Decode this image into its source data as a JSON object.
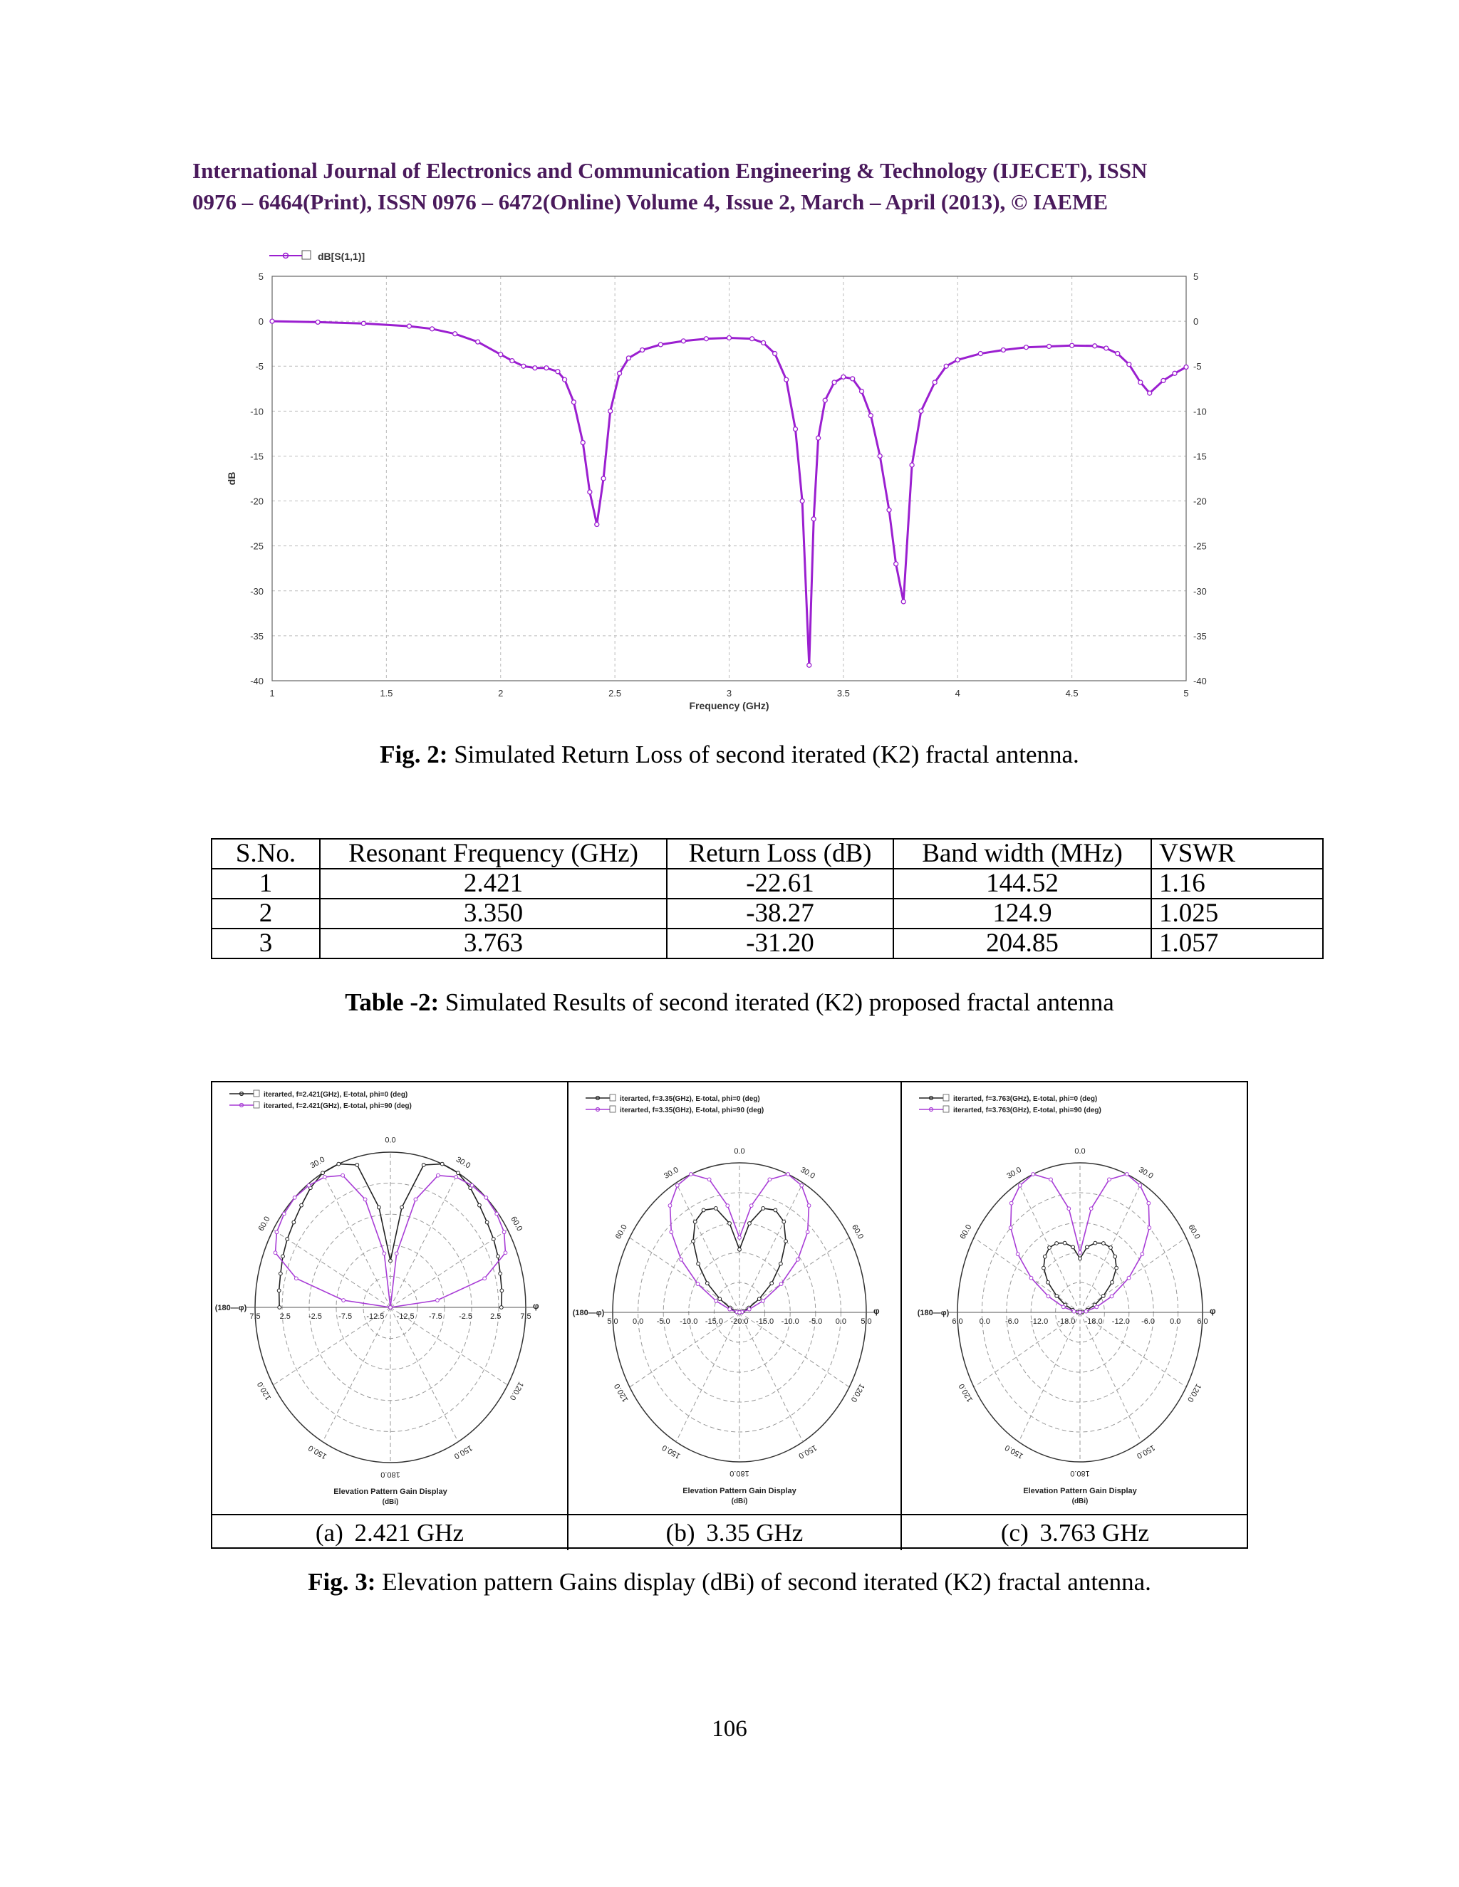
{
  "header": {
    "line1": "International Journal of Electronics and Communication Engineering & Technology (IJECET), ISSN",
    "line2": "0976 – 6464(Print), ISSN 0976 – 6472(Online) Volume 4, Issue 2, March – April (2013), © IAEME"
  },
  "fig2": {
    "caption_label": "Fig. 2:",
    "caption_text": " Simulated Return Loss of second iterated (K2) fractal antenna."
  },
  "chart_data": {
    "type": "line",
    "legend": "dB[S(1,1)]",
    "legend_position": "top-left",
    "xlabel": "Frequency (GHz)",
    "ylabel": "dB",
    "xlim": [
      1,
      5
    ],
    "ylim": [
      -40,
      5
    ],
    "x_ticks": [
      "1",
      "1.5",
      "2",
      "2.5",
      "3",
      "3.5",
      "4",
      "4.5",
      "5"
    ],
    "y_ticks": [
      "5",
      "0",
      "-5",
      "-10",
      "-15",
      "-20",
      "-25",
      "-30",
      "-35",
      "-40"
    ],
    "grid": true,
    "color": "#9b1fd0",
    "series": [
      {
        "name": "dB[S(1,1)]",
        "x": [
          1.0,
          1.2,
          1.4,
          1.6,
          1.7,
          1.8,
          1.9,
          2.0,
          2.05,
          2.1,
          2.15,
          2.2,
          2.25,
          2.28,
          2.32,
          2.36,
          2.39,
          2.421,
          2.45,
          2.48,
          2.52,
          2.56,
          2.62,
          2.7,
          2.8,
          2.9,
          3.0,
          3.1,
          3.15,
          3.2,
          3.25,
          3.29,
          3.32,
          3.35,
          3.37,
          3.39,
          3.42,
          3.46,
          3.5,
          3.54,
          3.58,
          3.62,
          3.66,
          3.7,
          3.73,
          3.763,
          3.8,
          3.84,
          3.9,
          3.95,
          4.0,
          4.1,
          4.2,
          4.3,
          4.4,
          4.5,
          4.6,
          4.65,
          4.7,
          4.75,
          4.8,
          4.84,
          4.9,
          4.95,
          5.0
        ],
        "y": [
          0,
          -0.1,
          -0.25,
          -0.55,
          -0.85,
          -1.4,
          -2.3,
          -3.7,
          -4.4,
          -5.0,
          -5.2,
          -5.2,
          -5.6,
          -6.5,
          -9.0,
          -13.5,
          -19.0,
          -22.61,
          -17.5,
          -10.0,
          -5.8,
          -4.1,
          -3.2,
          -2.6,
          -2.2,
          -1.95,
          -1.85,
          -1.95,
          -2.4,
          -3.6,
          -6.5,
          -12.0,
          -20.0,
          -38.27,
          -22.0,
          -13.0,
          -8.8,
          -6.8,
          -6.2,
          -6.4,
          -7.8,
          -10.5,
          -15.0,
          -21.0,
          -27.0,
          -31.2,
          -16.0,
          -10.0,
          -6.8,
          -5.0,
          -4.3,
          -3.6,
          -3.2,
          -2.9,
          -2.8,
          -2.7,
          -2.75,
          -3.0,
          -3.6,
          -4.8,
          -6.8,
          -8.0,
          -6.6,
          -5.8,
          -5.1
        ]
      }
    ]
  },
  "table2": {
    "headers": [
      "S.No.",
      "Resonant Frequency  (GHz)",
      "Return Loss (dB)",
      "Band width (MHz)",
      "VSWR"
    ],
    "rows": [
      [
        "1",
        "2.421",
        "-22.61",
        "144.52",
        "1.16"
      ],
      [
        "2",
        "3.350",
        "-38.27",
        "124.9",
        "1.025"
      ],
      [
        "3",
        "3.763",
        "-31.20",
        "204.85",
        "1.057"
      ]
    ],
    "caption_label": "Table -2:",
    "caption_text": " Simulated Results of second iterated (K2) proposed fractal antenna"
  },
  "fig3": {
    "panels": [
      {
        "legend": [
          "iterarted, f=2.421(GHz), E-total, phi=0 (deg)",
          "iterarted, f=2.421(GHz), E-total, phi=90 (deg)"
        ],
        "radial_ticks": [
          "7.5",
          "2.5",
          "-2.5",
          "-7.5",
          "-12.5",
          "-12.5",
          "-7.5",
          "-2.5",
          "2.5",
          "7.5"
        ],
        "sublabel": "(a)  2.421 GHz"
      },
      {
        "legend": [
          "iterarted, f=3.35(GHz), E-total, phi=0 (deg)",
          "iterarted, f=3.35(GHz), E-total, phi=90 (deg)"
        ],
        "radial_ticks": [
          "5.0",
          "0.0",
          "-5.0",
          "-10.0",
          "-15.0",
          "-20.0",
          "-15.0",
          "-10.0",
          "-5.0",
          "0.0",
          "5.0"
        ],
        "sublabel": "(b)  3.35 GHz"
      },
      {
        "legend": [
          "iterarted, f=3.763(GHz), E-total, phi=0 (deg)",
          "iterarted, f=3.763(GHz), E-total, phi=90 (deg)"
        ],
        "radial_ticks": [
          "6.0",
          "0.0",
          "-6.0",
          "-12.0",
          "-18.0",
          "-18.0",
          "-12.0",
          "-6.0",
          "0.0",
          "6.0"
        ],
        "sublabel": "(c)  3.763 GHz"
      }
    ],
    "angle_labels": [
      "0.0",
      "30.0",
      "30.0",
      "60.0",
      "60.0",
      "120.0",
      "120.0",
      "150.0",
      "150.0",
      "180.0"
    ],
    "left_label": "(180—φ)",
    "right_label": "φ",
    "bottom_title": "Elevation Pattern Gain Display",
    "bottom_unit": "(dBi)",
    "colors": {
      "phi0": "#222222",
      "phi90": "#a83cd6"
    },
    "caption_label": "Fig. 3:",
    "caption_text": " Elevation pattern Gains display (dBi) of second iterated (K2) fractal antenna."
  },
  "page_number": "106"
}
